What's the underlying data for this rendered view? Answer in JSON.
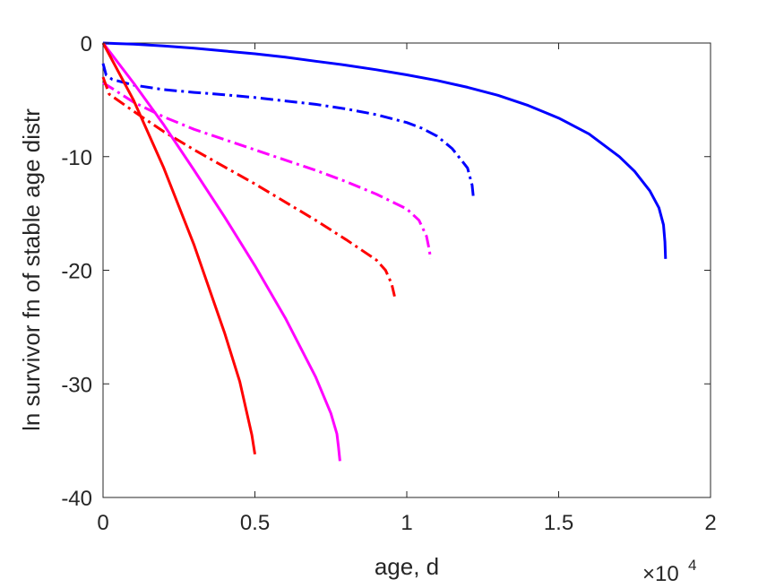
{
  "chart_data": {
    "type": "line",
    "title": "",
    "xlabel": "age, d",
    "ylabel": "ln survivor fn of stable age distr",
    "x_multiplier": "×10",
    "x_multiplier_exp": "4",
    "xlim": [
      0,
      2
    ],
    "ylim": [
      -40,
      0
    ],
    "xticks": [
      0,
      0.5,
      1,
      1.5,
      2
    ],
    "xtick_labels": [
      "0",
      "0.5",
      "1",
      "1.5",
      "2"
    ],
    "yticks": [
      0,
      -10,
      -20,
      -30,
      -40
    ],
    "ytick_labels": [
      "0",
      "-10",
      "-20",
      "-30",
      "-40"
    ],
    "grid": false,
    "legend": "none",
    "series": [
      {
        "color": "#0000ff",
        "style": "solid",
        "points": [
          [
            0,
            0
          ],
          [
            0.1,
            -0.1
          ],
          [
            0.2,
            -0.25
          ],
          [
            0.3,
            -0.45
          ],
          [
            0.4,
            -0.7
          ],
          [
            0.5,
            -0.95
          ],
          [
            0.6,
            -1.25
          ],
          [
            0.7,
            -1.6
          ],
          [
            0.8,
            -1.95
          ],
          [
            0.9,
            -2.35
          ],
          [
            1.0,
            -2.8
          ],
          [
            1.1,
            -3.3
          ],
          [
            1.2,
            -3.9
          ],
          [
            1.3,
            -4.6
          ],
          [
            1.4,
            -5.5
          ],
          [
            1.5,
            -6.6
          ],
          [
            1.6,
            -8.0
          ],
          [
            1.7,
            -10.0
          ],
          [
            1.75,
            -11.3
          ],
          [
            1.8,
            -13.0
          ],
          [
            1.83,
            -14.5
          ],
          [
            1.845,
            -16.0
          ],
          [
            1.85,
            -17.5
          ],
          [
            1.852,
            -19.0
          ]
        ]
      },
      {
        "color": "#0000ff",
        "style": "dashdot",
        "points": [
          [
            0,
            -1.8
          ],
          [
            0.01,
            -2.8
          ],
          [
            0.03,
            -3.2
          ],
          [
            0.1,
            -3.7
          ],
          [
            0.2,
            -4.1
          ],
          [
            0.3,
            -4.35
          ],
          [
            0.4,
            -4.55
          ],
          [
            0.5,
            -4.8
          ],
          [
            0.6,
            -5.1
          ],
          [
            0.7,
            -5.4
          ],
          [
            0.8,
            -5.8
          ],
          [
            0.9,
            -6.3
          ],
          [
            1.0,
            -7.0
          ],
          [
            1.05,
            -7.5
          ],
          [
            1.1,
            -8.2
          ],
          [
            1.15,
            -9.3
          ],
          [
            1.2,
            -11.0
          ],
          [
            1.215,
            -12.5
          ],
          [
            1.22,
            -13.8
          ]
        ]
      },
      {
        "color": "#ff00ff",
        "style": "dashdot",
        "points": [
          [
            0,
            -3.5
          ],
          [
            0.03,
            -4.0
          ],
          [
            0.1,
            -5.2
          ],
          [
            0.2,
            -6.5
          ],
          [
            0.3,
            -7.6
          ],
          [
            0.4,
            -8.5
          ],
          [
            0.5,
            -9.4
          ],
          [
            0.6,
            -10.3
          ],
          [
            0.7,
            -11.2
          ],
          [
            0.8,
            -12.2
          ],
          [
            0.9,
            -13.3
          ],
          [
            1.0,
            -14.6
          ],
          [
            1.04,
            -15.6
          ],
          [
            1.065,
            -17.0
          ],
          [
            1.075,
            -18.3
          ],
          [
            1.078,
            -19.0
          ]
        ]
      },
      {
        "color": "#ff0000",
        "style": "dashdot",
        "points": [
          [
            0,
            -3.0
          ],
          [
            0.02,
            -4.5
          ],
          [
            0.1,
            -6.0
          ],
          [
            0.2,
            -7.8
          ],
          [
            0.3,
            -9.4
          ],
          [
            0.4,
            -10.9
          ],
          [
            0.5,
            -12.4
          ],
          [
            0.6,
            -14.0
          ],
          [
            0.7,
            -15.6
          ],
          [
            0.8,
            -17.3
          ],
          [
            0.9,
            -19.1
          ],
          [
            0.93,
            -20.0
          ],
          [
            0.95,
            -21.2
          ],
          [
            0.96,
            -22.3
          ]
        ]
      },
      {
        "color": "#ff00ff",
        "style": "solid",
        "points": [
          [
            0,
            0
          ],
          [
            0.1,
            -3.5
          ],
          [
            0.2,
            -7.2
          ],
          [
            0.3,
            -11.2
          ],
          [
            0.4,
            -15.3
          ],
          [
            0.5,
            -19.6
          ],
          [
            0.6,
            -24.2
          ],
          [
            0.7,
            -29.4
          ],
          [
            0.75,
            -32.6
          ],
          [
            0.77,
            -34.4
          ],
          [
            0.775,
            -35.5
          ],
          [
            0.78,
            -36.8
          ]
        ]
      },
      {
        "color": "#ff0000",
        "style": "solid",
        "points": [
          [
            0,
            0
          ],
          [
            0.1,
            -5.0
          ],
          [
            0.2,
            -11.0
          ],
          [
            0.3,
            -17.8
          ],
          [
            0.4,
            -25.5
          ],
          [
            0.45,
            -29.8
          ],
          [
            0.49,
            -34.5
          ],
          [
            0.5,
            -36.2
          ]
        ]
      }
    ]
  }
}
